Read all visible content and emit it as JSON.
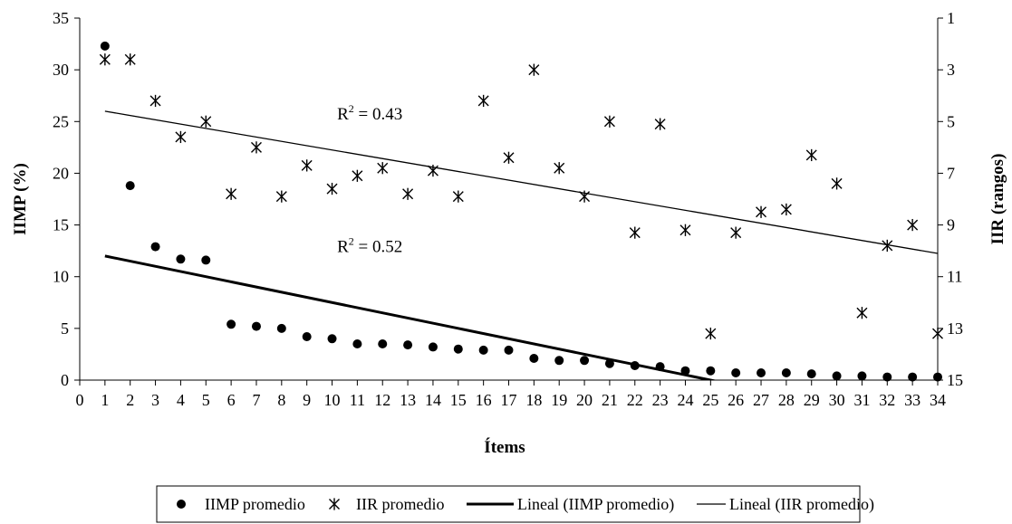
{
  "chart_data": {
    "type": "scatter",
    "xlabel": "Ítems",
    "ylabel": "IIMP (%)",
    "y2label": "IIR (rangos)",
    "xlim": [
      0,
      34
    ],
    "ylim": [
      0,
      35
    ],
    "y2lim": [
      1,
      15
    ],
    "y2_reversed": true,
    "x_ticks": [
      0,
      1,
      2,
      3,
      4,
      5,
      6,
      7,
      8,
      9,
      10,
      11,
      12,
      13,
      14,
      15,
      16,
      17,
      18,
      19,
      20,
      21,
      22,
      23,
      24,
      25,
      26,
      27,
      28,
      29,
      30,
      31,
      32,
      33,
      34
    ],
    "y_ticks": [
      0,
      5,
      10,
      15,
      20,
      25,
      30,
      35
    ],
    "y2_ticks": [
      1,
      3,
      5,
      7,
      9,
      11,
      13,
      15
    ],
    "grid": false,
    "legend_position": "bottom",
    "series": [
      {
        "name": "IIMP promedio",
        "marker": "circle",
        "axis": "left",
        "x": [
          1,
          2,
          3,
          4,
          5,
          6,
          7,
          8,
          9,
          10,
          11,
          12,
          13,
          14,
          15,
          16,
          17,
          18,
          19,
          20,
          21,
          22,
          23,
          24,
          25,
          26,
          27,
          28,
          29,
          30,
          31,
          32,
          33,
          34
        ],
        "y": [
          32.3,
          18.8,
          12.9,
          11.7,
          11.6,
          5.4,
          5.2,
          5.0,
          4.2,
          4.0,
          3.5,
          3.5,
          3.4,
          3.2,
          3.0,
          2.9,
          2.9,
          2.1,
          1.9,
          1.9,
          1.6,
          1.4,
          1.3,
          0.9,
          0.9,
          0.7,
          0.7,
          0.7,
          0.6,
          0.4,
          0.4,
          0.3,
          0.3,
          0.3
        ]
      },
      {
        "name": "IIR promedio",
        "marker": "star",
        "axis": "right",
        "x": [
          1,
          2,
          3,
          4,
          5,
          6,
          7,
          8,
          9,
          10,
          11,
          12,
          13,
          14,
          15,
          16,
          17,
          18,
          19,
          20,
          21,
          22,
          23,
          24,
          25,
          26,
          27,
          28,
          29,
          30,
          31,
          32,
          33,
          34
        ],
        "y": [
          2.6,
          2.6,
          4.2,
          5.6,
          5.0,
          7.8,
          6.0,
          7.9,
          6.7,
          7.6,
          7.1,
          6.8,
          7.8,
          6.9,
          7.9,
          4.2,
          6.4,
          3.0,
          6.8,
          7.9,
          5.0,
          9.3,
          5.1,
          9.2,
          13.2,
          9.3,
          8.5,
          8.4,
          6.3,
          7.4,
          12.4,
          9.8,
          9.0,
          13.2
        ]
      },
      {
        "name": "Lineal (IIMP promedio)",
        "type": "trendline",
        "axis": "left",
        "line_weight": "heavy",
        "x": [
          1,
          34
        ],
        "y": [
          12.0,
          -4.5
        ]
      },
      {
        "name": "Lineal (IIR promedio)",
        "type": "trendline",
        "axis": "right",
        "line_weight": "thin",
        "x": [
          1,
          34
        ],
        "y": [
          4.6,
          10.1
        ]
      }
    ],
    "annotations": [
      {
        "text_base": "R",
        "text_sup": "2",
        "text_rest": " = 0.43",
        "x": 10.2,
        "axis": "left",
        "y": 25.2
      },
      {
        "text_base": "R",
        "text_sup": "2",
        "text_rest": " = 0.52",
        "x": 10.2,
        "axis": "left",
        "y": 12.4
      }
    ]
  }
}
